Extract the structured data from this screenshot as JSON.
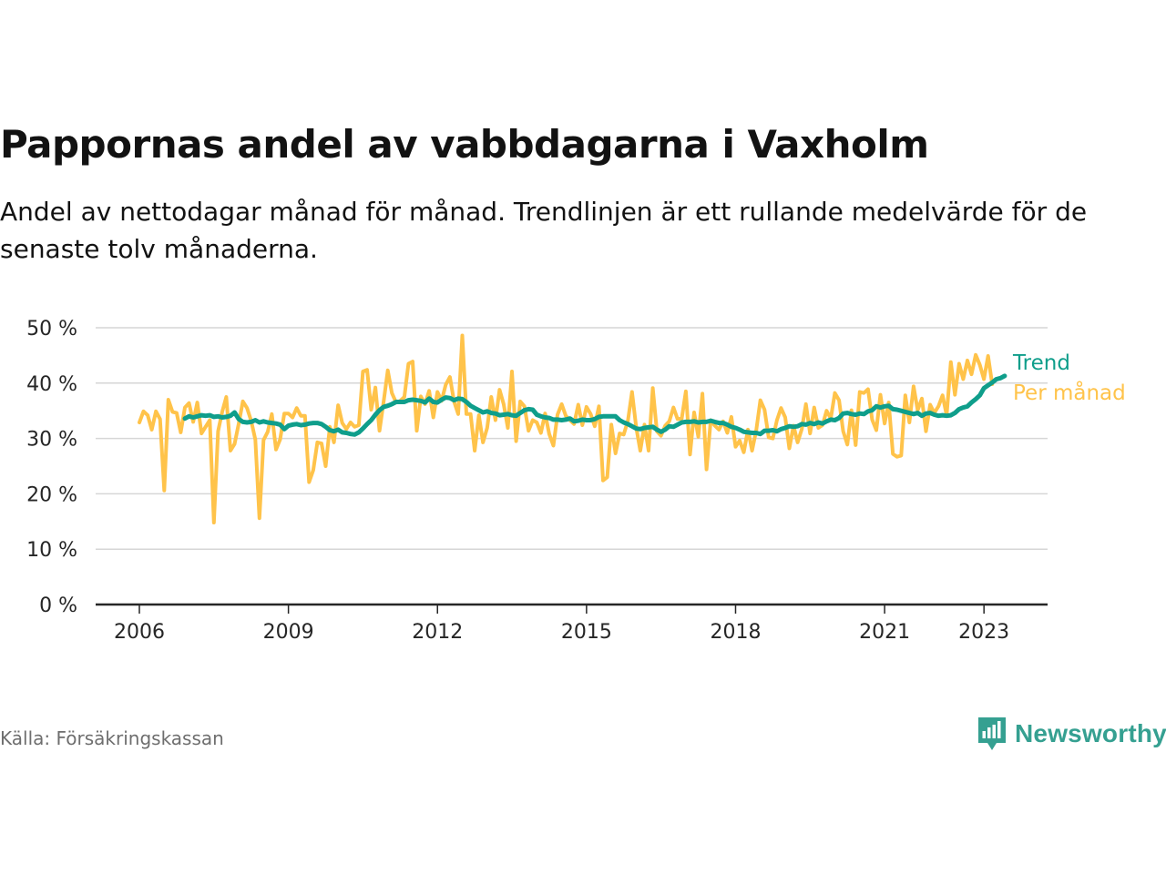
{
  "title": "Pappornas andel av vabbdagarna i Vaxholm",
  "subtitle": "Andel av nettodagar månad för månad. Trendlinjen är ett rullande medelvärde för de senaste tolv månaderna.",
  "source": "Källa: Försäkringskassan",
  "brand": "Newsworthy",
  "colors": {
    "monthly": "#ffc34a",
    "trend": "#0f9e8b",
    "grid": "#d6d6d6",
    "axis": "#262626",
    "brand": "#35a091"
  },
  "chart_data": {
    "type": "line",
    "x_unit": "year",
    "ylim": [
      0,
      50
    ],
    "y_ticks": [
      {
        "value": 0,
        "label": "0 %"
      },
      {
        "value": 10,
        "label": "10 %"
      },
      {
        "value": 20,
        "label": "20 %"
      },
      {
        "value": 30,
        "label": "30 %"
      },
      {
        "value": 40,
        "label": "40 %"
      },
      {
        "value": 50,
        "label": "50 %"
      }
    ],
    "x_ticks": [
      {
        "value": 2006,
        "label": "2006"
      },
      {
        "value": 2009,
        "label": "2009"
      },
      {
        "value": 2012,
        "label": "2012"
      },
      {
        "value": 2015,
        "label": "2015"
      },
      {
        "value": 2018,
        "label": "2018"
      },
      {
        "value": 2021,
        "label": "2021"
      },
      {
        "value": 2023,
        "label": "2023"
      }
    ],
    "grid": true,
    "legend": "end-of-line labels",
    "series": [
      {
        "name": "Per månad",
        "x_start": 2006.0,
        "x_step": 0.08333,
        "values": [
          32.9,
          34.9,
          34.2,
          31.6,
          34.9,
          33.5,
          20.6,
          37,
          34.8,
          34.6,
          31.1,
          35.6,
          36.4,
          33,
          36.5,
          30.9,
          32.1,
          33.3,
          14.8,
          31.3,
          34.8,
          37.5,
          27.8,
          29,
          32.7,
          36.7,
          35.5,
          33.2,
          29.8,
          15.6,
          29.7,
          31.2,
          34.4,
          28,
          29.8,
          34.5,
          34.5,
          33.8,
          35.5,
          34.1,
          34.1,
          22.1,
          24.3,
          29.3,
          29.1,
          25,
          32.1,
          29.3,
          36,
          32.8,
          31.7,
          32.9,
          32.1,
          32.4,
          42.1,
          42.4,
          35.2,
          39.2,
          31.4,
          36.6,
          42.3,
          38.2,
          36.5,
          36.8,
          37.5,
          43.5,
          43.9,
          31.4,
          37.6,
          36.2,
          38.6,
          33.8,
          38.4,
          36.8,
          39.7,
          41.1,
          36.7,
          34.4,
          48.6,
          34.4,
          34.4,
          27.8,
          34.2,
          29.3,
          31.9,
          37.5,
          33.3,
          38.8,
          36.2,
          31.9,
          42.1,
          29.5,
          36.7,
          35.8,
          31.4,
          33.3,
          32.9,
          31,
          34.5,
          30.8,
          28.7,
          34.3,
          36.2,
          34.1,
          33.3,
          32.6,
          36.1,
          32.4,
          35.7,
          34.4,
          32.2,
          35.8,
          22.4,
          23,
          32.5,
          27.3,
          30.9,
          30.7,
          33.2,
          38.4,
          32,
          27.8,
          32.5,
          27.8,
          39.1,
          31.3,
          30.5,
          32.3,
          33.1,
          35.6,
          33.5,
          33.6,
          38.5,
          27.1,
          34.7,
          30.3,
          38.1,
          24.4,
          33.3,
          32.3,
          31.6,
          33.1,
          31,
          33.9,
          28.5,
          29.6,
          27.5,
          31.6,
          27.8,
          31.5,
          36.9,
          35.2,
          30.2,
          30,
          33.3,
          35.5,
          33.8,
          28.2,
          32.3,
          29.3,
          31.7,
          36.2,
          30.9,
          35.6,
          31.9,
          32.4,
          35,
          33.6,
          38.2,
          36.9,
          31.3,
          28.9,
          35.1,
          28.8,
          38.4,
          38.2,
          38.9,
          33.4,
          31.5,
          37.9,
          32.7,
          36.5,
          27.2,
          26.7,
          26.9,
          37.8,
          32.9,
          39.4,
          35.1,
          37.2,
          31.3,
          36.1,
          34.6,
          35.8,
          37.8,
          34.2,
          43.8,
          37.9,
          43.5,
          40.7,
          44.1,
          41.6,
          45.1,
          43.3,
          40.7,
          44.9,
          39.8
        ],
        "end_label": "Per månad"
      },
      {
        "name": "Trend",
        "x_start": 2006.9167,
        "x_step": 0.08333,
        "values": [
          33.6,
          34,
          33.8,
          34,
          34.2,
          34.1,
          34.2,
          33.9,
          34,
          33.8,
          33.9,
          34.1,
          34.7,
          33.5,
          33,
          32.9,
          33,
          33.3,
          32.9,
          33.1,
          32.9,
          32.8,
          32.7,
          32.5,
          31.7,
          32.3,
          32.5,
          32.6,
          32.4,
          32.5,
          32.7,
          32.8,
          32.8,
          32.6,
          32.1,
          31.5,
          31.3,
          31.6,
          31.1,
          31,
          30.8,
          30.7,
          31.1,
          31.8,
          32.6,
          33.3,
          34.3,
          35.1,
          35.7,
          35.9,
          36.2,
          36.6,
          36.6,
          36.6,
          36.9,
          37,
          36.9,
          36.8,
          36.5,
          37.2,
          36.6,
          36.5,
          37,
          37.4,
          37.3,
          36.9,
          37.2,
          37.1,
          36.6,
          35.9,
          35.5,
          35.1,
          34.7,
          34.9,
          34.6,
          34.5,
          34.2,
          34.3,
          34.4,
          34.2,
          34.1,
          34.6,
          35.1,
          35.3,
          35.2,
          34.3,
          34,
          33.8,
          33.7,
          33.4,
          33.4,
          33.3,
          33.4,
          33.6,
          33.1,
          33.2,
          33.4,
          33.3,
          33.3,
          33.5,
          33.9,
          34,
          34,
          34,
          34,
          33.3,
          32.9,
          32.6,
          32.2,
          31.8,
          31.7,
          31.9,
          32,
          32.1,
          31.6,
          31.2,
          31.6,
          32.2,
          32.1,
          32.5,
          32.9,
          33,
          33,
          33.1,
          32.9,
          33,
          33,
          33.2,
          33,
          32.8,
          32.8,
          32.5,
          32.1,
          31.9,
          31.6,
          31.2,
          31.1,
          31,
          31,
          30.8,
          31.4,
          31.4,
          31.5,
          31.3,
          31.7,
          31.9,
          32.2,
          32.1,
          32.2,
          32.6,
          32.5,
          32.8,
          32.6,
          32.9,
          32.7,
          33.1,
          33.4,
          33.3,
          33.7,
          34.5,
          34.6,
          34.4,
          34.3,
          34.5,
          34.4,
          34.9,
          35.1,
          35.8,
          35.6,
          35.8,
          35.9,
          35.3,
          35.2,
          35,
          34.8,
          34.6,
          34.4,
          34.6,
          34.1,
          34.5,
          34.6,
          34.3,
          34.1,
          34.2,
          34.1,
          34.2,
          34.6,
          35.3,
          35.6,
          35.8,
          36.5,
          37.1,
          37.8,
          39.1,
          39.6,
          40.1,
          40.7,
          40.9,
          41.3
        ]
      }
    ]
  }
}
